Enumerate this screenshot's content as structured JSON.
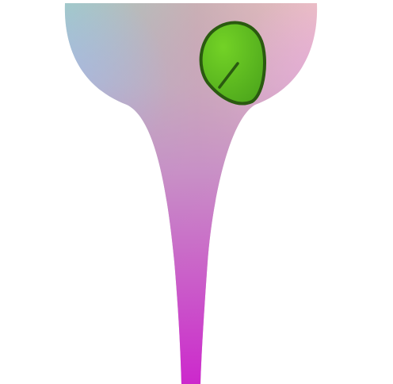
{
  "scene": {
    "background": "#ffffff",
    "vase": {
      "name": "funnel-vase",
      "gradient": {
        "top_left": "#8fd7c8",
        "top_right": "#ffc8c8",
        "left_mid": "#9bc8f0",
        "right_mid": "#f0b4e6",
        "middle": "#c88cc8",
        "bottom": "#cc28cc"
      }
    },
    "leaf": {
      "name": "green-leaf",
      "fill_light": "#73d226",
      "fill_dark": "#4ea81c",
      "stroke": "#2a5a10",
      "vein": "#2a5a10"
    }
  }
}
